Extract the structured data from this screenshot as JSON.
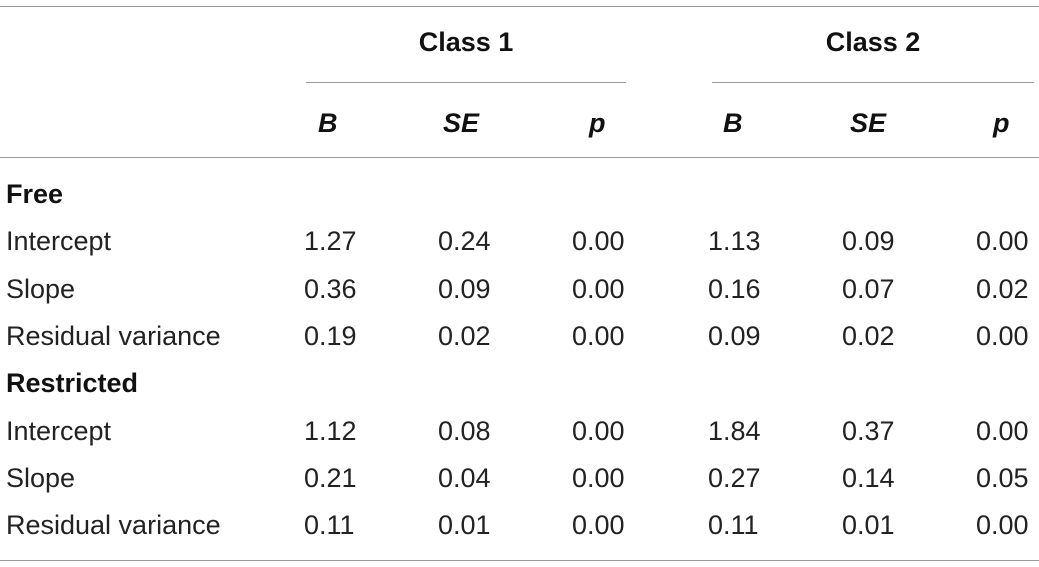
{
  "table": {
    "group_headers": [
      "Class 1",
      "Class 2"
    ],
    "column_headers": [
      "B",
      "SE",
      "p",
      "B",
      "SE",
      "p"
    ],
    "sections": [
      {
        "label": "Free",
        "rows": [
          {
            "label": "Intercept",
            "values": [
              "1.27",
              "0.24",
              "0.00",
              "1.13",
              "0.09",
              "0.00"
            ]
          },
          {
            "label": "Slope",
            "values": [
              "0.36",
              "0.09",
              "0.00",
              "0.16",
              "0.07",
              "0.02"
            ]
          },
          {
            "label": "Residual variance",
            "values": [
              "0.19",
              "0.02",
              "0.00",
              "0.09",
              "0.02",
              "0.00"
            ]
          }
        ]
      },
      {
        "label": "Restricted",
        "rows": [
          {
            "label": "Intercept",
            "values": [
              "1.12",
              "0.08",
              "0.00",
              "1.84",
              "0.37",
              "0.00"
            ]
          },
          {
            "label": "Slope",
            "values": [
              "0.21",
              "0.04",
              "0.00",
              "0.27",
              "0.14",
              "0.05"
            ]
          },
          {
            "label": "Residual variance",
            "values": [
              "0.11",
              "0.01",
              "0.00",
              "0.11",
              "0.01",
              "0.00"
            ]
          }
        ]
      }
    ]
  }
}
